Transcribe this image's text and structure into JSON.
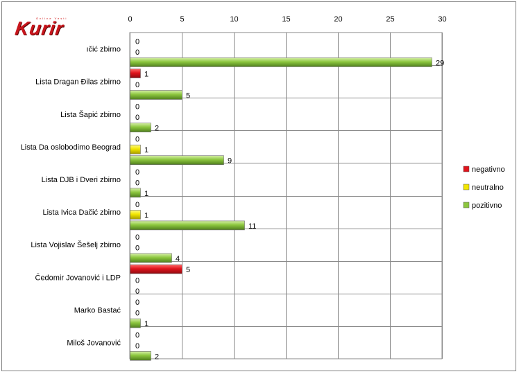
{
  "logo": {
    "text": "Kurir",
    "tagline": "Online Vesti"
  },
  "colors": {
    "negativno": "#e0141c",
    "neutralno": "#f2e600",
    "pozitivno": "#8cc63e"
  },
  "chart_data": {
    "type": "bar",
    "orientation": "horizontal",
    "title": "",
    "xlabel": "",
    "ylabel": "",
    "xlim": [
      0,
      30
    ],
    "x_ticks": [
      0,
      5,
      10,
      15,
      20,
      25,
      30
    ],
    "x_axis_position": "top",
    "grid": true,
    "legend_position": "right",
    "categories": [
      "ıčić zbirno",
      "Lista Dragan Đilas zbirno",
      "Lista Šapić zbirno",
      "Lista Da oslobodimo Beograd",
      "Lista DJB i Dveri zbirno",
      "Lista Ivica Dačić zbirno",
      "Lista Vojislav Šešelj zbirno",
      "Čedomir Jovanović i LDP",
      "Marko Bastać",
      "Miloš Jovanović"
    ],
    "series": [
      {
        "name": "negativno",
        "color": "#e0141c",
        "values": [
          0,
          1,
          0,
          0,
          0,
          0,
          0,
          5,
          0,
          0
        ]
      },
      {
        "name": "neutralno",
        "color": "#f2e600",
        "values": [
          0,
          0,
          0,
          1,
          0,
          1,
          0,
          0,
          0,
          0
        ]
      },
      {
        "name": "pozitivno",
        "color": "#8cc63e",
        "values": [
          29,
          5,
          2,
          9,
          1,
          11,
          4,
          0,
          1,
          2
        ]
      }
    ]
  }
}
